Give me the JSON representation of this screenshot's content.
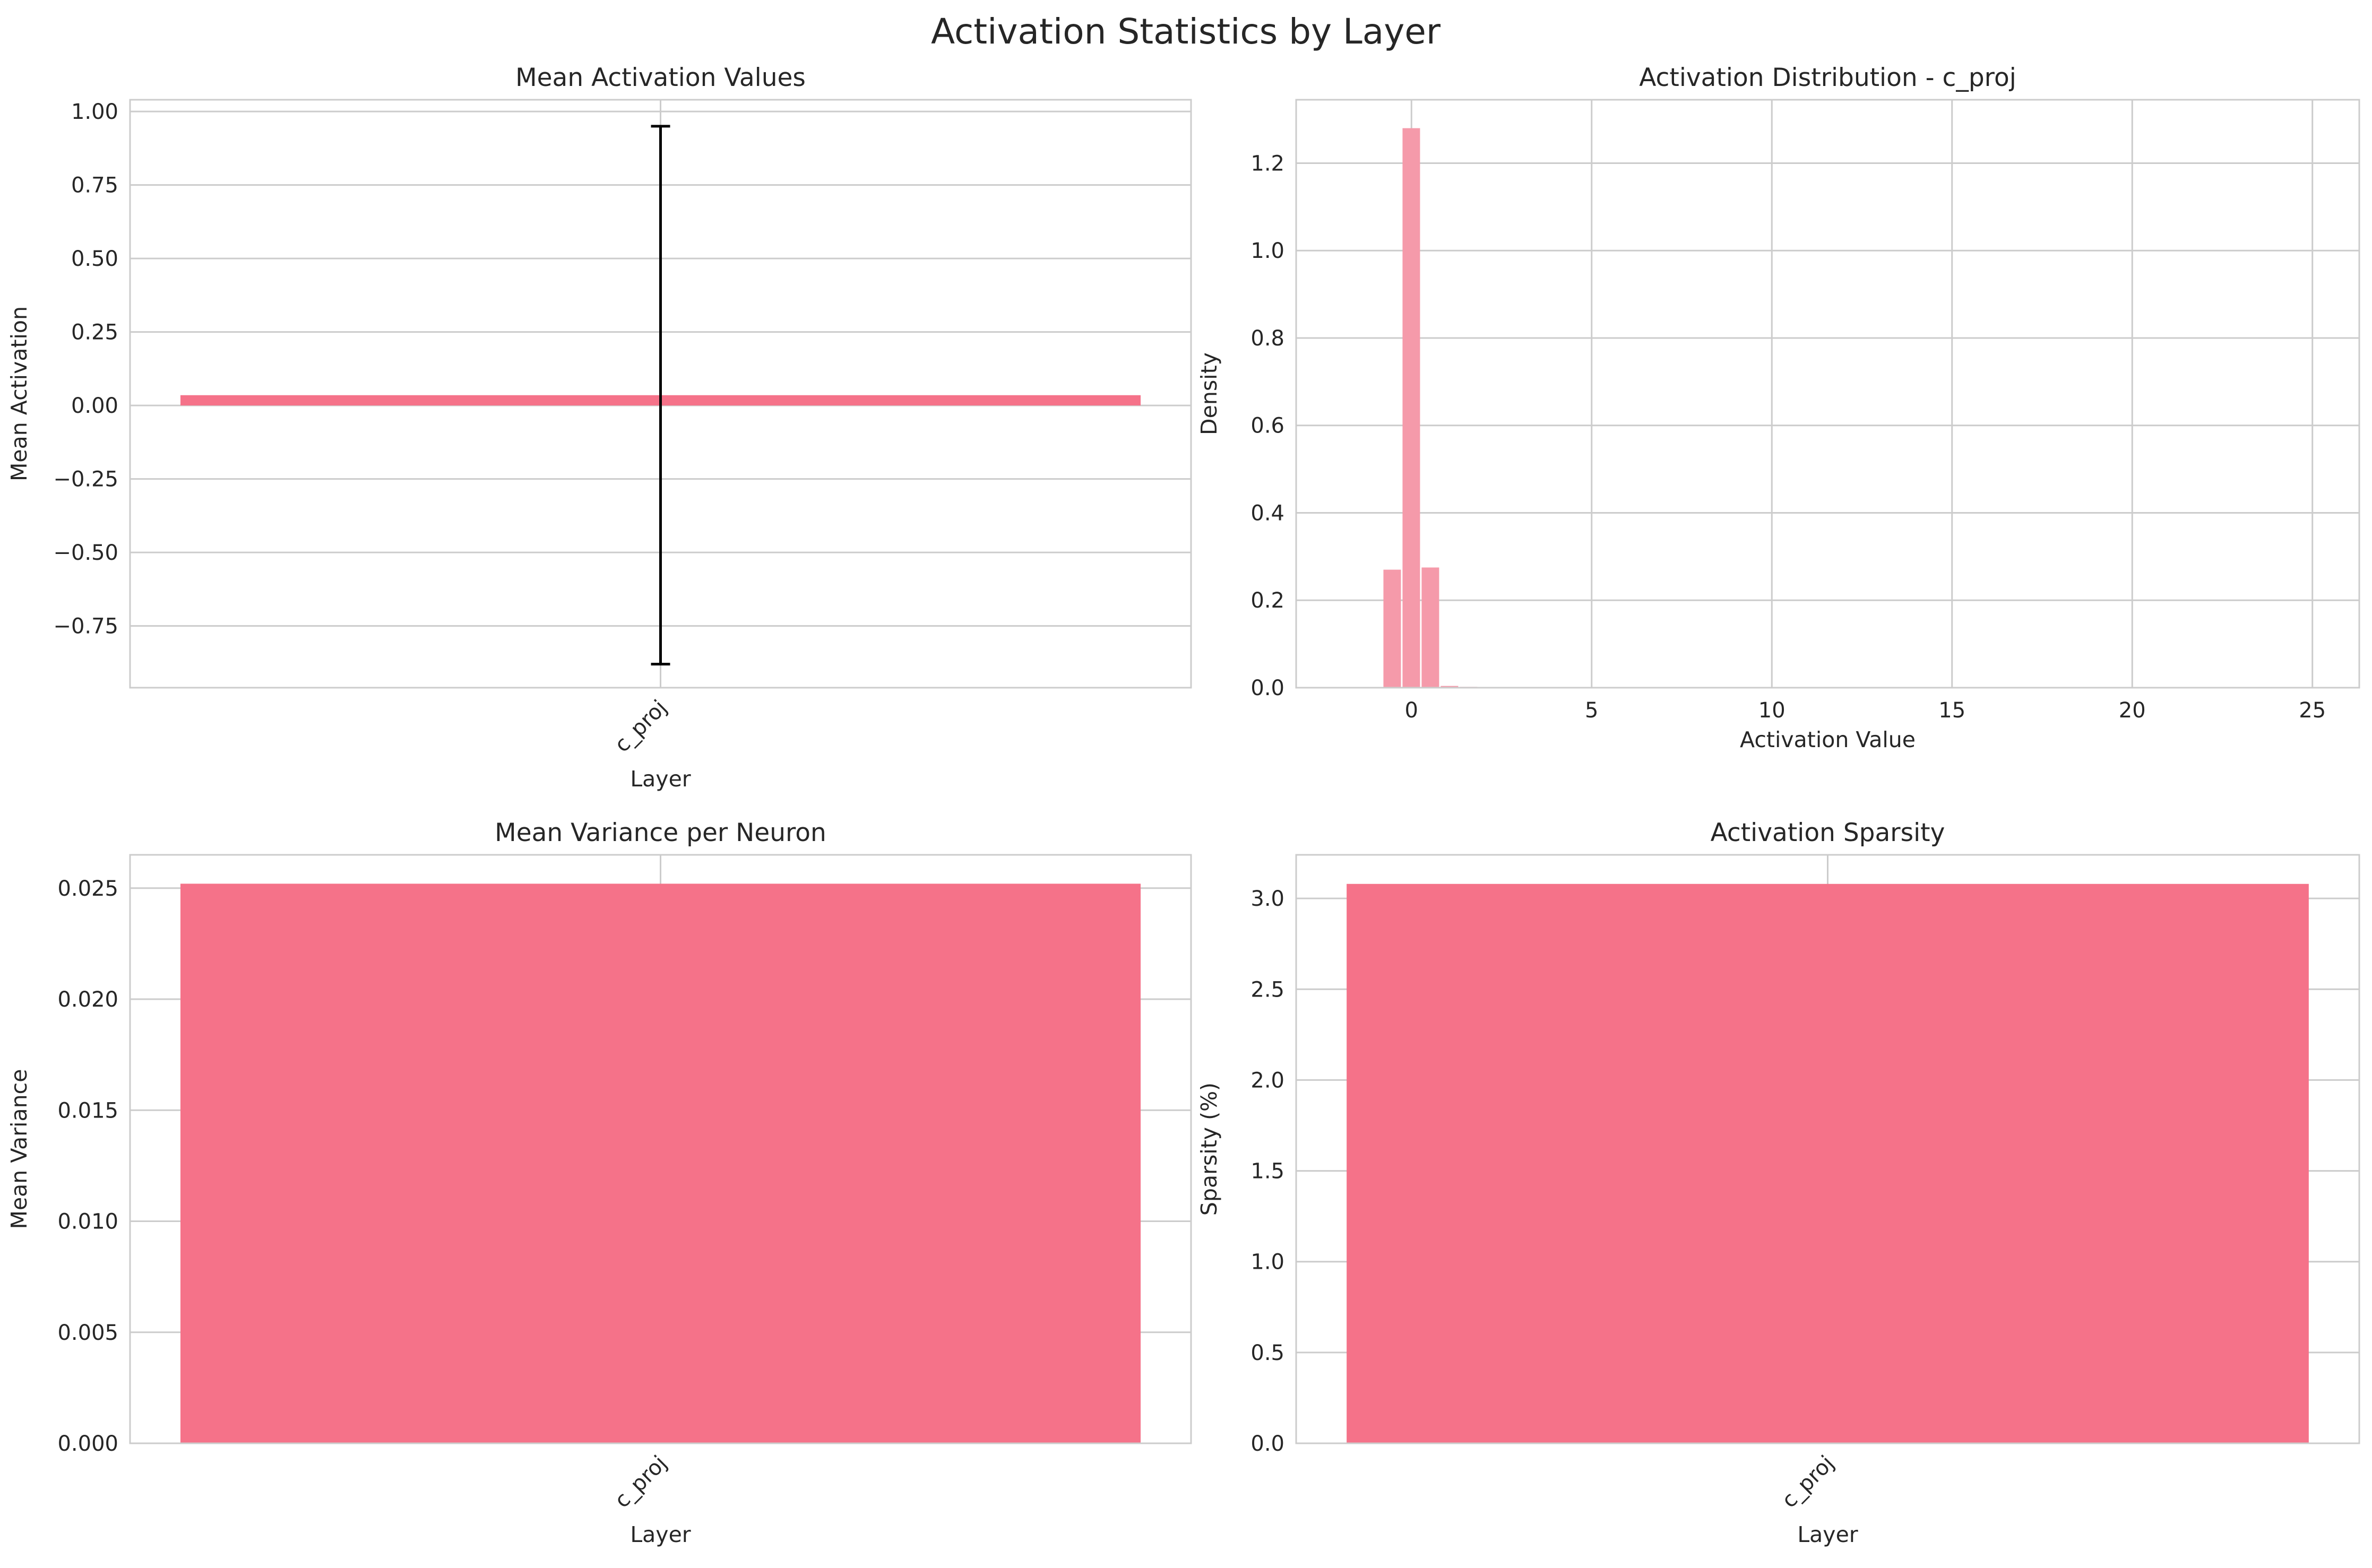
{
  "figure": {
    "suptitle": "Activation Statistics by Layer"
  },
  "colors": {
    "bar": "#f57289",
    "hist": "#f59aaa",
    "errorbar": "#000000",
    "grid": "#cccccc"
  },
  "chart_data": [
    {
      "type": "bar",
      "title": "Mean Activation Values",
      "xlabel": "Layer",
      "ylabel": "Mean Activation",
      "categories": [
        "c_proj"
      ],
      "values": [
        0.035
      ],
      "error": [
        0.915
      ],
      "ylim": [
        -0.96,
        1.04
      ],
      "yticks": [
        -0.75,
        -0.5,
        -0.25,
        0.0,
        0.25,
        0.5,
        0.75,
        1.0
      ],
      "ytick_labels": [
        "−0.75",
        "−0.50",
        "−0.25",
        "0.00",
        "0.25",
        "0.50",
        "0.75",
        "1.00"
      ],
      "xtick_rotation": 45,
      "grid": true
    },
    {
      "type": "histogram",
      "title": "Activation Distribution - c_proj",
      "xlabel": "Activation Value",
      "ylabel": "Density",
      "xlim": [
        -3.2,
        26.3
      ],
      "ylim": [
        0,
        1.345
      ],
      "xticks": [
        0,
        5,
        10,
        15,
        20,
        25
      ],
      "xtick_labels": [
        "0",
        "5",
        "10",
        "15",
        "20",
        "25"
      ],
      "yticks": [
        0.0,
        0.2,
        0.4,
        0.6,
        0.8,
        1.0,
        1.2
      ],
      "ytick_labels": [
        "0.0",
        "0.2",
        "0.4",
        "0.6",
        "0.8",
        "1.0",
        "1.2"
      ],
      "bins": [
        {
          "x0": -0.8,
          "x1": -0.27,
          "density": 0.27
        },
        {
          "x0": -0.27,
          "x1": 0.26,
          "density": 1.28
        },
        {
          "x0": 0.26,
          "x1": 0.79,
          "density": 0.275
        },
        {
          "x0": 0.79,
          "x1": 1.32,
          "density": 0.004
        },
        {
          "x0": 1.32,
          "x1": 1.85,
          "density": 0.002
        }
      ],
      "grid": true
    },
    {
      "type": "bar",
      "title": "Mean Variance per Neuron",
      "xlabel": "Layer",
      "ylabel": "Mean Variance",
      "categories": [
        "c_proj"
      ],
      "values": [
        0.0252
      ],
      "ylim": [
        0,
        0.0265
      ],
      "yticks": [
        0.0,
        0.005,
        0.01,
        0.015,
        0.02,
        0.025
      ],
      "ytick_labels": [
        "0.000",
        "0.005",
        "0.010",
        "0.015",
        "0.020",
        "0.025"
      ],
      "xtick_rotation": 45,
      "grid": true
    },
    {
      "type": "bar",
      "title": "Activation Sparsity",
      "xlabel": "Layer",
      "ylabel": "Sparsity (%)",
      "categories": [
        "c_proj"
      ],
      "values": [
        3.08
      ],
      "ylim": [
        0,
        3.24
      ],
      "yticks": [
        0.0,
        0.5,
        1.0,
        1.5,
        2.0,
        2.5,
        3.0
      ],
      "ytick_labels": [
        "0.0",
        "0.5",
        "1.0",
        "1.5",
        "2.0",
        "2.5",
        "3.0"
      ],
      "xtick_rotation": 45,
      "grid": true
    }
  ]
}
